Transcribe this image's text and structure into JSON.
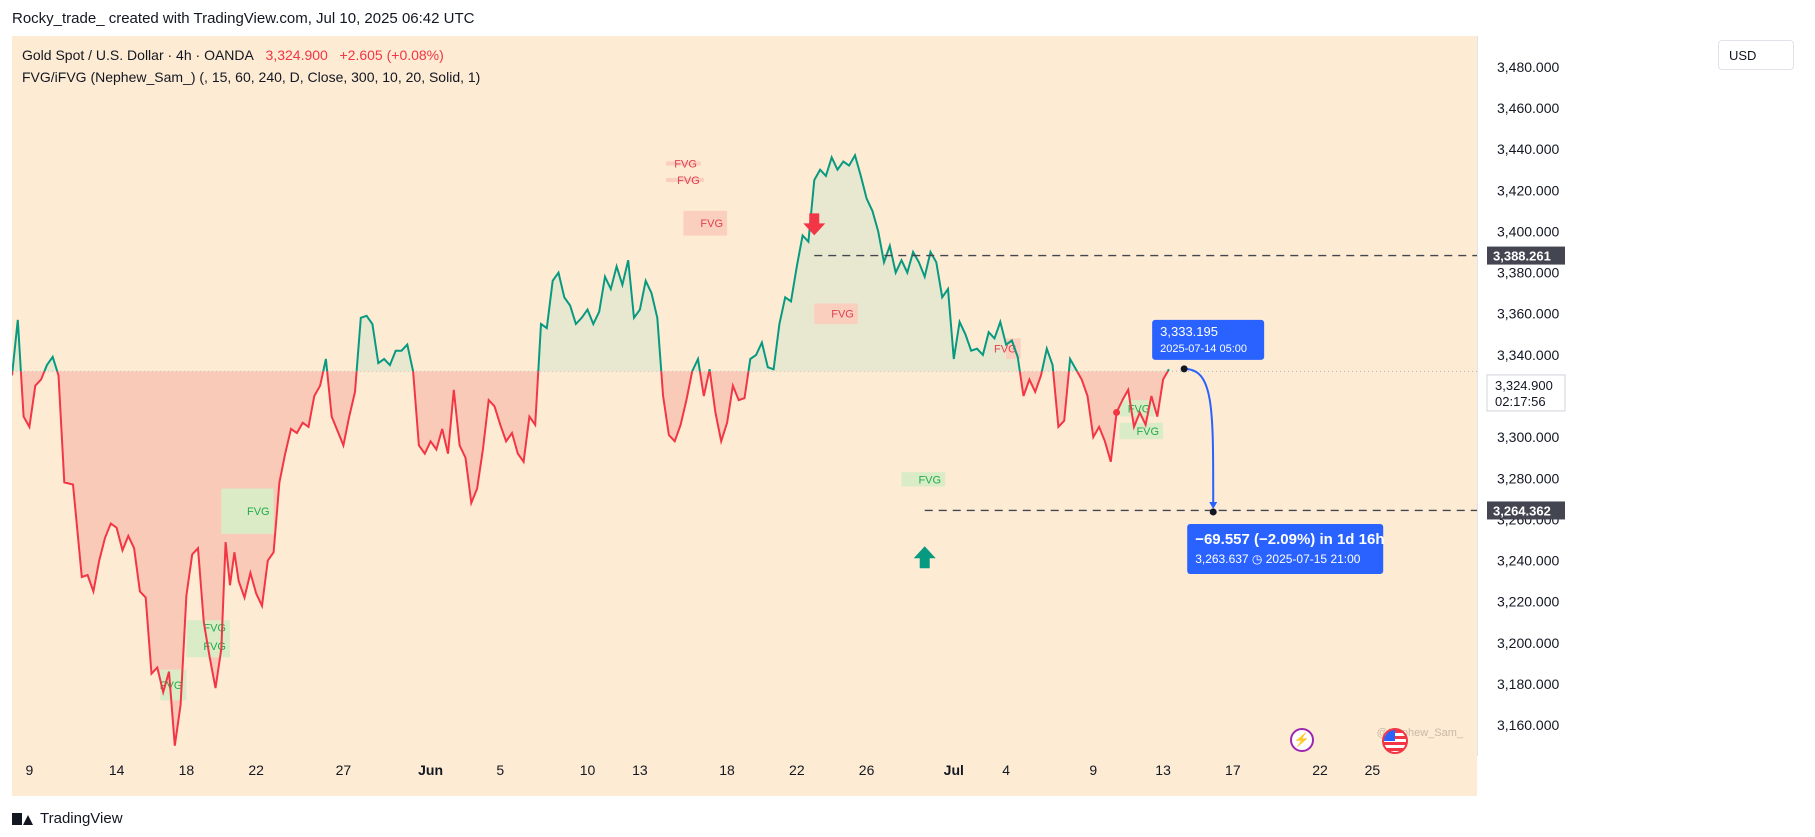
{
  "header": {
    "attribution": "Rocky_trade_ created with TradingView.com, Jul 10, 2025 06:42 UTC"
  },
  "legend": {
    "symbol": "Gold Spot / U.S. Dollar · 4h · OANDA",
    "price": "3,324.900",
    "change": "+2.605 (+0.08%)",
    "indicator": "FVG/iFVG (Nephew_Sam_) (, 15, 60, 240, D, Close, 300, 10, 20, Solid, 1)"
  },
  "currency_button": "USD",
  "footer": {
    "brand": "TradingView"
  },
  "watermark": "@Nephew_Sam_",
  "colors": {
    "background": "#fdebd3",
    "up_line": "#089981",
    "down_line": "#f23645",
    "up_fill": "#e6e8cf",
    "down_fill": "#f9c7b6",
    "fvg_bull": "#d8ecc6",
    "fvg_bear": "#fbcdbd",
    "measure_blue": "#2962ff"
  },
  "chart_data": {
    "type": "line",
    "series_type": "baseline",
    "y_range": [
      3145,
      3495
    ],
    "x_range": [
      "2025-05-08",
      "2025-07-31"
    ],
    "baseline": 3332,
    "x_ticks": [
      {
        "date": "2025-05-09",
        "label": "9"
      },
      {
        "date": "2025-05-14",
        "label": "14"
      },
      {
        "date": "2025-05-18",
        "label": "18"
      },
      {
        "date": "2025-05-22",
        "label": "22"
      },
      {
        "date": "2025-05-27",
        "label": "27"
      },
      {
        "date": "2025-06-01",
        "label": "Jun",
        "bold": true
      },
      {
        "date": "2025-06-05",
        "label": "5"
      },
      {
        "date": "2025-06-10",
        "label": "10"
      },
      {
        "date": "2025-06-13",
        "label": "13"
      },
      {
        "date": "2025-06-18",
        "label": "18"
      },
      {
        "date": "2025-06-22",
        "label": "22"
      },
      {
        "date": "2025-06-26",
        "label": "26"
      },
      {
        "date": "2025-07-01",
        "label": "Jul",
        "bold": true
      },
      {
        "date": "2025-07-04",
        "label": "4"
      },
      {
        "date": "2025-07-09",
        "label": "9"
      },
      {
        "date": "2025-07-13",
        "label": "13"
      },
      {
        "date": "2025-07-17",
        "label": "17"
      },
      {
        "date": "2025-07-22",
        "label": "22"
      },
      {
        "date": "2025-07-25",
        "label": "25"
      }
    ],
    "y_ticks": [
      {
        "value": 3160,
        "label": "3,160.000"
      },
      {
        "value": 3180,
        "label": "3,180.000"
      },
      {
        "value": 3200,
        "label": "3,200.000"
      },
      {
        "value": 3220,
        "label": "3,220.000"
      },
      {
        "value": 3240,
        "label": "3,240.000"
      },
      {
        "value": 3260,
        "label": "3,260.000"
      },
      {
        "value": 3280,
        "label": "3,280.000"
      },
      {
        "value": 3300,
        "label": "3,300.000"
      },
      {
        "value": 3320,
        "label": "3,320.000"
      },
      {
        "value": 3340,
        "label": "3,340.000"
      },
      {
        "value": 3360,
        "label": "3,360.000"
      },
      {
        "value": 3380,
        "label": "3,380.000"
      },
      {
        "value": 3400,
        "label": "3,400.000"
      },
      {
        "value": 3420,
        "label": "3,420.000"
      },
      {
        "value": 3440,
        "label": "3,440.000"
      },
      {
        "value": 3460,
        "label": "3,460.000"
      },
      {
        "value": 3480,
        "label": "3,480.000"
      }
    ],
    "price_series": [
      [
        "2025-05-08T00:00",
        3330
      ],
      [
        "2025-05-08T08:00",
        3357
      ],
      [
        "2025-05-08T16:00",
        3310
      ],
      [
        "2025-05-09T00:00",
        3305
      ],
      [
        "2025-05-09T08:00",
        3325
      ],
      [
        "2025-05-09T16:00",
        3328
      ],
      [
        "2025-05-10T00:00",
        3335
      ],
      [
        "2025-05-10T08:00",
        3339
      ],
      [
        "2025-05-10T16:00",
        3330
      ],
      [
        "2025-05-11T00:00",
        3278
      ],
      [
        "2025-05-11T12:00",
        3277
      ],
      [
        "2025-05-12T00:00",
        3232
      ],
      [
        "2025-05-12T08:00",
        3233
      ],
      [
        "2025-05-12T16:00",
        3225
      ],
      [
        "2025-05-13T00:00",
        3240
      ],
      [
        "2025-05-13T08:00",
        3251
      ],
      [
        "2025-05-13T16:00",
        3258
      ],
      [
        "2025-05-14T00:00",
        3256
      ],
      [
        "2025-05-14T08:00",
        3245
      ],
      [
        "2025-05-14T16:00",
        3252
      ],
      [
        "2025-05-15T00:00",
        3246
      ],
      [
        "2025-05-15T08:00",
        3225
      ],
      [
        "2025-05-15T16:00",
        3222
      ],
      [
        "2025-05-16T00:00",
        3185
      ],
      [
        "2025-05-16T08:00",
        3188
      ],
      [
        "2025-05-16T16:00",
        3176
      ],
      [
        "2025-05-17T00:00",
        3186
      ],
      [
        "2025-05-17T08:00",
        3150
      ],
      [
        "2025-05-17T16:00",
        3170
      ],
      [
        "2025-05-18T00:00",
        3223
      ],
      [
        "2025-05-18T08:00",
        3243
      ],
      [
        "2025-05-18T16:00",
        3246
      ],
      [
        "2025-05-19T00:00",
        3210
      ],
      [
        "2025-05-19T08:00",
        3193
      ],
      [
        "2025-05-19T16:00",
        3178
      ],
      [
        "2025-05-20T00:00",
        3197
      ],
      [
        "2025-05-20T06:00",
        3249
      ],
      [
        "2025-05-20T12:00",
        3228
      ],
      [
        "2025-05-20T18:00",
        3244
      ],
      [
        "2025-05-21T00:00",
        3230
      ],
      [
        "2025-05-21T08:00",
        3222
      ],
      [
        "2025-05-21T16:00",
        3234
      ],
      [
        "2025-05-22T00:00",
        3224
      ],
      [
        "2025-05-22T08:00",
        3218
      ],
      [
        "2025-05-22T16:00",
        3240
      ],
      [
        "2025-05-23T00:00",
        3244
      ],
      [
        "2025-05-23T08:00",
        3278
      ],
      [
        "2025-05-23T16:00",
        3292
      ],
      [
        "2025-05-24T00:00",
        3304
      ],
      [
        "2025-05-24T08:00",
        3302
      ],
      [
        "2025-05-24T16:00",
        3307
      ],
      [
        "2025-05-25T00:00",
        3305
      ],
      [
        "2025-05-25T08:00",
        3320
      ],
      [
        "2025-05-25T16:00",
        3325
      ],
      [
        "2025-05-26T00:00",
        3338
      ],
      [
        "2025-05-26T08:00",
        3310
      ],
      [
        "2025-05-26T16:00",
        3303
      ],
      [
        "2025-05-27T00:00",
        3296
      ],
      [
        "2025-05-27T08:00",
        3310
      ],
      [
        "2025-05-27T16:00",
        3322
      ],
      [
        "2025-05-28T00:00",
        3358
      ],
      [
        "2025-05-28T08:00",
        3359
      ],
      [
        "2025-05-28T16:00",
        3355
      ],
      [
        "2025-05-29T00:00",
        3336
      ],
      [
        "2025-05-29T08:00",
        3338
      ],
      [
        "2025-05-29T16:00",
        3335
      ],
      [
        "2025-05-30T00:00",
        3342
      ],
      [
        "2025-05-30T08:00",
        3342
      ],
      [
        "2025-05-30T16:00",
        3345
      ],
      [
        "2025-05-31T00:00",
        3332
      ],
      [
        "2025-05-31T08:00",
        3296
      ],
      [
        "2025-05-31T16:00",
        3292
      ],
      [
        "2025-06-01T00:00",
        3298
      ],
      [
        "2025-06-01T08:00",
        3294
      ],
      [
        "2025-06-01T16:00",
        3304
      ],
      [
        "2025-06-02T00:00",
        3292
      ],
      [
        "2025-06-02T08:00",
        3323
      ],
      [
        "2025-06-02T16:00",
        3296
      ],
      [
        "2025-06-03T00:00",
        3290
      ],
      [
        "2025-06-03T08:00",
        3268
      ],
      [
        "2025-06-03T16:00",
        3275
      ],
      [
        "2025-06-04T00:00",
        3294
      ],
      [
        "2025-06-04T08:00",
        3318
      ],
      [
        "2025-06-04T16:00",
        3315
      ],
      [
        "2025-06-05T00:00",
        3306
      ],
      [
        "2025-06-05T08:00",
        3298
      ],
      [
        "2025-06-05T16:00",
        3302
      ],
      [
        "2025-06-06T00:00",
        3292
      ],
      [
        "2025-06-06T08:00",
        3288
      ],
      [
        "2025-06-06T16:00",
        3310
      ],
      [
        "2025-06-07T00:00",
        3306
      ],
      [
        "2025-06-07T08:00",
        3355
      ],
      [
        "2025-06-07T16:00",
        3353
      ],
      [
        "2025-06-08T00:00",
        3376
      ],
      [
        "2025-06-08T08:00",
        3380
      ],
      [
        "2025-06-08T16:00",
        3368
      ],
      [
        "2025-06-09T00:00",
        3364
      ],
      [
        "2025-06-09T08:00",
        3355
      ],
      [
        "2025-06-09T16:00",
        3358
      ],
      [
        "2025-06-10T00:00",
        3362
      ],
      [
        "2025-06-10T08:00",
        3355
      ],
      [
        "2025-06-10T16:00",
        3361
      ],
      [
        "2025-06-11T00:00",
        3378
      ],
      [
        "2025-06-11T08:00",
        3372
      ],
      [
        "2025-06-11T16:00",
        3383
      ],
      [
        "2025-06-12T00:00",
        3374
      ],
      [
        "2025-06-12T08:00",
        3386
      ],
      [
        "2025-06-12T16:00",
        3358
      ],
      [
        "2025-06-13T00:00",
        3362
      ],
      [
        "2025-06-13T08:00",
        3376
      ],
      [
        "2025-06-13T16:00",
        3370
      ],
      [
        "2025-06-14T00:00",
        3358
      ],
      [
        "2025-06-14T08:00",
        3320
      ],
      [
        "2025-06-14T16:00",
        3301
      ],
      [
        "2025-06-15T00:00",
        3298
      ],
      [
        "2025-06-15T08:00",
        3306
      ],
      [
        "2025-06-15T16:00",
        3318
      ],
      [
        "2025-06-16T00:00",
        3332
      ],
      [
        "2025-06-16T08:00",
        3338
      ],
      [
        "2025-06-16T16:00",
        3320
      ],
      [
        "2025-06-17T00:00",
        3333
      ],
      [
        "2025-06-17T08:00",
        3312
      ],
      [
        "2025-06-17T16:00",
        3298
      ],
      [
        "2025-06-18T00:00",
        3307
      ],
      [
        "2025-06-18T08:00",
        3325
      ],
      [
        "2025-06-18T16:00",
        3318
      ],
      [
        "2025-06-19T00:00",
        3319
      ],
      [
        "2025-06-19T08:00",
        3338
      ],
      [
        "2025-06-19T16:00",
        3340
      ],
      [
        "2025-06-20T00:00",
        3346
      ],
      [
        "2025-06-20T08:00",
        3334
      ],
      [
        "2025-06-20T16:00",
        3333
      ],
      [
        "2025-06-21T00:00",
        3355
      ],
      [
        "2025-06-21T08:00",
        3368
      ],
      [
        "2025-06-21T16:00",
        3366
      ],
      [
        "2025-06-22T00:00",
        3383
      ],
      [
        "2025-06-22T08:00",
        3398
      ],
      [
        "2025-06-22T16:00",
        3395
      ],
      [
        "2025-06-23T00:00",
        3425
      ],
      [
        "2025-06-23T08:00",
        3430
      ],
      [
        "2025-06-23T16:00",
        3427
      ],
      [
        "2025-06-24T00:00",
        3436
      ],
      [
        "2025-06-24T08:00",
        3430
      ],
      [
        "2025-06-24T16:00",
        3434
      ],
      [
        "2025-06-25T00:00",
        3432
      ],
      [
        "2025-06-25T08:00",
        3437
      ],
      [
        "2025-06-25T16:00",
        3427
      ],
      [
        "2025-06-26T00:00",
        3416
      ],
      [
        "2025-06-26T08:00",
        3410
      ],
      [
        "2025-06-26T16:00",
        3400
      ],
      [
        "2025-06-27T00:00",
        3385
      ],
      [
        "2025-06-27T08:00",
        3393
      ],
      [
        "2025-06-27T16:00",
        3380
      ],
      [
        "2025-06-28T00:00",
        3386
      ],
      [
        "2025-06-28T08:00",
        3380
      ],
      [
        "2025-06-28T16:00",
        3390
      ],
      [
        "2025-06-29T00:00",
        3385
      ],
      [
        "2025-06-29T08:00",
        3378
      ],
      [
        "2025-06-29T16:00",
        3390
      ],
      [
        "2025-06-30T00:00",
        3385
      ],
      [
        "2025-06-30T08:00",
        3368
      ],
      [
        "2025-06-30T16:00",
        3372
      ]
    ],
    "crosshair_price": 3324.9,
    "horizontal_levels": [
      {
        "value": 3388.261,
        "label": "3,388.261"
      },
      {
        "value": 3264.362,
        "label": "3,264.362"
      }
    ],
    "last_price_label": {
      "value": "3,324.900",
      "countdown": "02:17:56"
    },
    "fvg_zones": [
      {
        "label": "FVG",
        "kind": "bear",
        "start": "2025-06-14T12:00",
        "end": "2025-06-16T12:00",
        "low": 3432,
        "high": 3434
      },
      {
        "label": "FVG",
        "kind": "bear",
        "start": "2025-06-14T12:00",
        "end": "2025-06-16T16:00",
        "low": 3424,
        "high": 3426
      },
      {
        "label": "FVG",
        "kind": "bear",
        "start": "2025-06-15T12:00",
        "end": "2025-06-18T00:00",
        "low": 3398,
        "high": 3410
      },
      {
        "label": "FVG",
        "kind": "bear",
        "start": "2025-06-23T00:00",
        "end": "2025-06-25T12:00",
        "low": 3355,
        "high": 3365
      },
      {
        "label": "FVG",
        "kind": "bear",
        "start": "2025-07-04T00:00",
        "end": "2025-07-04T20:00",
        "low": 3338,
        "high": 3348
      },
      {
        "label": "FVG",
        "kind": "bull",
        "start": "2025-05-20T00:00",
        "end": "2025-05-23T00:00",
        "low": 3253,
        "high": 3275
      },
      {
        "label": "FVG",
        "kind": "bull",
        "start": "2025-05-18T00:00",
        "end": "2025-05-20T12:00",
        "low": 3204,
        "high": 3211
      },
      {
        "label": "FVG",
        "kind": "bull",
        "start": "2025-05-18T00:00",
        "end": "2025-05-20T12:00",
        "low": 3193,
        "high": 3204
      },
      {
        "label": "FVG",
        "kind": "bull",
        "start": "2025-05-16T12:00",
        "end": "2025-05-18T00:00",
        "low": 3172,
        "high": 3187
      },
      {
        "label": "FVG",
        "kind": "bull",
        "start": "2025-06-28T00:00",
        "end": "2025-06-30T12:00",
        "low": 3276,
        "high": 3283
      },
      {
        "label": "FVG",
        "kind": "bull",
        "start": "2025-07-10T12:00",
        "end": "2025-07-12T12:00",
        "low": 3310,
        "high": 3318
      },
      {
        "label": "FVG",
        "kind": "bull",
        "start": "2025-07-10T12:00",
        "end": "2025-07-13T00:00",
        "low": 3299,
        "high": 3307
      }
    ],
    "arrows": [
      {
        "kind": "down",
        "date": "2025-06-23T00:00",
        "value": 3400,
        "color": "#f23645"
      },
      {
        "kind": "up",
        "date": "2025-06-29T08:00",
        "value": 3245,
        "color": "#089981"
      }
    ],
    "measure": {
      "start_label": {
        "price": "3,333.195",
        "time": "2025-07-14 05:00",
        "date": "2025-07-14T05:00",
        "value": 3333.195
      },
      "end_label": {
        "change": "−69.557 (−2.09%) in 1d 16h",
        "price": "3,263.637",
        "time": "2025-07-15  21:00",
        "date": "2025-07-15T21:00",
        "value": 3263.637
      }
    }
  },
  "july_series": [
    [
      "2025-07-01T00:00",
      3338
    ],
    [
      "2025-07-01T08:00",
      3356
    ],
    [
      "2025-07-01T16:00",
      3350
    ],
    [
      "2025-07-02T00:00",
      3342
    ],
    [
      "2025-07-02T08:00",
      3343
    ],
    [
      "2025-07-02T16:00",
      3340
    ],
    [
      "2025-07-03T00:00",
      3351
    ],
    [
      "2025-07-03T08:00",
      3348
    ],
    [
      "2025-07-03T16:00",
      3356
    ],
    [
      "2025-07-04T00:00",
      3345
    ],
    [
      "2025-07-04T08:00",
      3347
    ],
    [
      "2025-07-04T16:00",
      3339
    ],
    [
      "2025-07-05T00:00",
      3320
    ],
    [
      "2025-07-05T08:00",
      3328
    ],
    [
      "2025-07-05T16:00",
      3322
    ],
    [
      "2025-07-06T00:00",
      3330
    ],
    [
      "2025-07-06T08:00",
      3343
    ],
    [
      "2025-07-06T16:00",
      3335
    ],
    [
      "2025-07-07T00:00",
      3305
    ],
    [
      "2025-07-07T08:00",
      3308
    ],
    [
      "2025-07-07T16:00",
      3338
    ],
    [
      "2025-07-08T00:00",
      3333
    ],
    [
      "2025-07-08T08:00",
      3328
    ],
    [
      "2025-07-08T16:00",
      3320
    ],
    [
      "2025-07-09T00:00",
      3300
    ],
    [
      "2025-07-09T08:00",
      3305
    ],
    [
      "2025-07-09T16:00",
      3298
    ],
    [
      "2025-07-10T00:00",
      3288
    ],
    [
      "2025-07-10T08:00",
      3312
    ],
    [
      "2025-07-10T16:00",
      3318
    ],
    [
      "2025-07-11T00:00",
      3323
    ],
    [
      "2025-07-11T08:00",
      3305
    ],
    [
      "2025-07-11T16:00",
      3312
    ],
    [
      "2025-07-12T00:00",
      3306
    ],
    [
      "2025-07-12T08:00",
      3320
    ],
    [
      "2025-07-12T16:00",
      3310
    ],
    [
      "2025-07-13T00:00",
      3328
    ],
    [
      "2025-07-13T08:00",
      3333
    ]
  ]
}
